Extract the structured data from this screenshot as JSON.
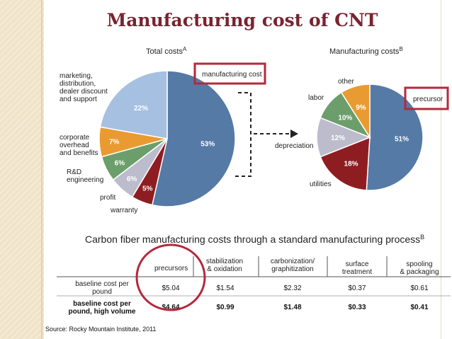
{
  "slide": {
    "title": "Manufacturing cost of CNT",
    "source": "Source: Rocky Mountain Institute, 2011"
  },
  "colors": {
    "blue": "#557aa6",
    "light_blue": "#a6c0e1",
    "orange": "#e99b31",
    "green": "#6b9e6b",
    "grey": "#bdbccd",
    "red": "#8e1d22",
    "highlight": "#b5283b",
    "title": "#7a2330"
  },
  "chart_data": [
    {
      "type": "pie",
      "title": "Total costs",
      "title_sup": "A",
      "slices": [
        {
          "label": "manufacturing cost",
          "value": 53,
          "text": "53%",
          "color": "#557aa6"
        },
        {
          "label": "warranty",
          "value": 5,
          "text": "5%",
          "color": "#8e1d22"
        },
        {
          "label": "profit",
          "value": 6,
          "text": "6%",
          "color": "#bdbccd"
        },
        {
          "label": "R&D engineering",
          "value": 6,
          "text": "6%",
          "color": "#6b9e6b"
        },
        {
          "label": "corporate overhead and benefits",
          "value": 7,
          "text": "7%",
          "color": "#e99b31"
        },
        {
          "label": "marketing, distribution, dealer discount and support",
          "value": 22,
          "text": "22%",
          "color": "#a6c0e1"
        }
      ]
    },
    {
      "type": "pie",
      "title": "Manufacturing costs",
      "title_sup": "B",
      "slices": [
        {
          "label": "precursor",
          "value": 51,
          "text": "51%",
          "color": "#557aa6"
        },
        {
          "label": "utilities",
          "value": 18,
          "text": "18%",
          "color": "#8e1d22"
        },
        {
          "label": "depreciation",
          "value": 12,
          "text": "12%",
          "color": "#bdbccd"
        },
        {
          "label": "labor",
          "value": 10,
          "text": "10%",
          "color": "#6b9e6b"
        },
        {
          "label": "other",
          "value": 9,
          "text": "9%",
          "color": "#e99b31"
        }
      ]
    },
    {
      "type": "table",
      "title": "Carbon fiber manufacturing costs through a standard manufacturing process",
      "title_sup": "B",
      "columns": [
        "precursors",
        "stabilization & oxidation",
        "carbonization/ graphitization",
        "surface treatment",
        "spooling & packaging"
      ],
      "rows": [
        {
          "label": "baseline cost per pound",
          "values": [
            "$5.04",
            "$1.54",
            "$2.32",
            "$0.37",
            "$0.61"
          ]
        },
        {
          "label": "baseline cost per pound, high volume",
          "values": [
            "$4.64",
            "$0.99",
            "$1.48",
            "$0.33",
            "$0.41"
          ]
        }
      ]
    }
  ]
}
